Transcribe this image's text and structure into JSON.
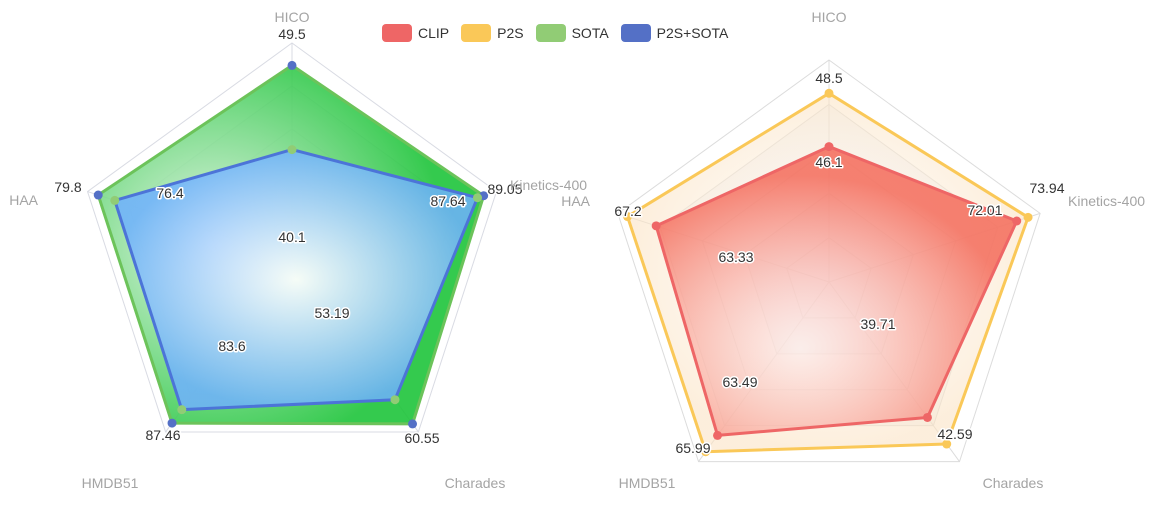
{
  "legend": [
    {
      "name": "CLIP",
      "color": "#ee6666"
    },
    {
      "name": "P2S",
      "color": "#fac858"
    },
    {
      "name": "SOTA",
      "color": "#91cc75"
    },
    {
      "name": "P2S+SOTA",
      "color": "#5470c6"
    }
  ],
  "chart_data": [
    {
      "type": "radar",
      "indicators": [
        "HICO",
        "Kinetics-400",
        "Charades",
        "HMDB51",
        "HAA"
      ],
      "series": [
        {
          "name": "SOTA",
          "values": [
            40.1,
            87.64,
            53.19,
            83.6,
            76.4
          ],
          "color": "#91cc75"
        },
        {
          "name": "P2S+SOTA",
          "values": [
            49.5,
            89.05,
            60.55,
            87.46,
            79.8
          ],
          "color": "#5470c6"
        }
      ]
    },
    {
      "type": "radar",
      "indicators": [
        "HICO",
        "Kinetics-400",
        "Charades",
        "HMDB51",
        "HAA"
      ],
      "series": [
        {
          "name": "CLIP",
          "values": [
            46.1,
            72.01,
            39.71,
            63.49,
            63.33
          ],
          "color": "#ee6666"
        },
        {
          "name": "P2S",
          "values": [
            48.5,
            73.94,
            42.59,
            65.99,
            67.2
          ],
          "color": "#fac858"
        }
      ]
    }
  ]
}
